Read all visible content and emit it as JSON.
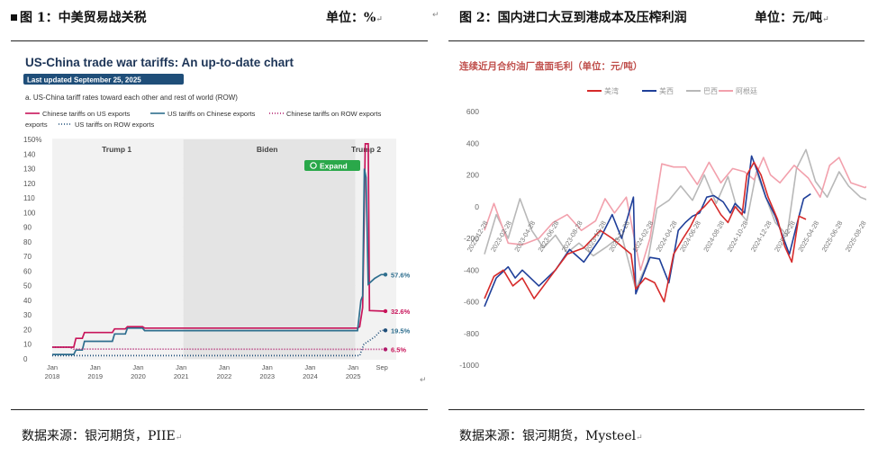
{
  "left": {
    "header_title": "图 1：中美贸易战关税",
    "header_unit": "单位：%",
    "source": "数据来源：银河期货，PIIE",
    "chart_data": {
      "type": "line",
      "title": "US-China trade war tariffs: An up-to-date chart",
      "badge": "Last updated September 25, 2025",
      "subtitle": "a. US-China tariff rates toward each other and rest of world (ROW)",
      "legend": [
        {
          "name": "Chinese tariffs on US exports",
          "color": "#c8145a",
          "style": "solid"
        },
        {
          "name": "US tariffs on Chinese exports",
          "color": "#2e6e8e",
          "style": "solid"
        },
        {
          "name": "Chinese tariffs on ROW exports",
          "color": "#b0186a",
          "style": "dotted"
        },
        {
          "name": "US tariffs on ROW exports",
          "color": "#1f4e79",
          "style": "dotted"
        }
      ],
      "y_ticks": [
        "150%",
        "140",
        "130",
        "120",
        "110",
        "100",
        "90",
        "80",
        "70",
        "60",
        "50",
        "40",
        "30",
        "20",
        "10",
        "0"
      ],
      "x_ticks": [
        {
          "m": "Jan",
          "y": "2018"
        },
        {
          "m": "Jan",
          "y": "2019"
        },
        {
          "m": "Jan",
          "y": "2020"
        },
        {
          "m": "Jan",
          "y": "2021"
        },
        {
          "m": "Jan",
          "y": "2022"
        },
        {
          "m": "Jan",
          "y": "2023"
        },
        {
          "m": "Jan",
          "y": "2024"
        },
        {
          "m": "Jan",
          "y": "2025"
        },
        {
          "m": "Sep",
          "y": ""
        }
      ],
      "eras": [
        "Trump 1",
        "Biden",
        "Trump 2"
      ],
      "expand_label": "Expand",
      "end_labels": [
        {
          "text": "57.6%",
          "value": 57.6,
          "color": "#2e6e8e"
        },
        {
          "text": "32.6%",
          "value": 32.6,
          "color": "#c8145a"
        },
        {
          "text": "19.5%",
          "value": 19.5,
          "color": "#2e6e8e"
        },
        {
          "text": "6.5%",
          "value": 6.5,
          "color": "#c8145a"
        }
      ],
      "ylim": [
        0,
        150
      ],
      "series": [
        {
          "name": "Chinese tariffs on US exports",
          "color": "#c8145a",
          "dash": "",
          "points": [
            [
              2018.0,
              8
            ],
            [
              2018.5,
              8
            ],
            [
              2018.55,
              14
            ],
            [
              2018.7,
              14
            ],
            [
              2018.75,
              18
            ],
            [
              2019.0,
              18
            ],
            [
              2019.4,
              18
            ],
            [
              2019.45,
              20.5
            ],
            [
              2019.7,
              20.5
            ],
            [
              2019.75,
              22
            ],
            [
              2020.1,
              22
            ],
            [
              2020.15,
              21
            ],
            [
              2025.1,
              21
            ],
            [
              2025.15,
              22
            ],
            [
              2025.22,
              35
            ],
            [
              2025.25,
              84
            ],
            [
              2025.28,
              147
            ],
            [
              2025.35,
              147
            ],
            [
              2025.38,
              33
            ],
            [
              2025.75,
              32.6
            ]
          ]
        },
        {
          "name": "US tariffs on Chinese exports",
          "color": "#2e6e8e",
          "dash": "",
          "points": [
            [
              2018.0,
              3
            ],
            [
              2018.5,
              3
            ],
            [
              2018.55,
              6
            ],
            [
              2018.7,
              6
            ],
            [
              2018.75,
              12
            ],
            [
              2019.4,
              12
            ],
            [
              2019.45,
              17
            ],
            [
              2019.7,
              17
            ],
            [
              2019.75,
              21
            ],
            [
              2020.1,
              21
            ],
            [
              2020.15,
              19.3
            ],
            [
              2025.1,
              19.3
            ],
            [
              2025.12,
              24
            ],
            [
              2025.18,
              40
            ],
            [
              2025.22,
              43
            ],
            [
              2025.26,
              130
            ],
            [
              2025.3,
              124
            ],
            [
              2025.35,
              51
            ],
            [
              2025.5,
              55
            ],
            [
              2025.65,
              57.6
            ],
            [
              2025.75,
              57.6
            ]
          ]
        },
        {
          "name": "Chinese tariffs on ROW exports",
          "color": "#b0186a",
          "dash": "1,2",
          "points": [
            [
              2018.0,
              8
            ],
            [
              2018.4,
              8
            ],
            [
              2018.5,
              6.7
            ],
            [
              2025.75,
              6.5
            ]
          ]
        },
        {
          "name": "US tariffs on ROW exports",
          "color": "#1f4e79",
          "dash": "1,2",
          "points": [
            [
              2018.0,
              2.2
            ],
            [
              2025.15,
              2.2
            ],
            [
              2025.25,
              10
            ],
            [
              2025.35,
              12
            ],
            [
              2025.5,
              15
            ],
            [
              2025.65,
              19.5
            ],
            [
              2025.75,
              19.5
            ]
          ]
        }
      ]
    }
  },
  "right": {
    "header_title": "图 2：国内进口大豆到港成本及压榨利润",
    "header_unit": "单位：元/吨",
    "source": "数据来源：银河期货，Mysteel",
    "chart_data": {
      "type": "line",
      "title": "连续近月合约油厂盘面毛利（单位：元/吨）",
      "legend": [
        {
          "name": "美湾",
          "color": "#d62a2a"
        },
        {
          "name": "美西",
          "color": "#1f3f99"
        },
        {
          "name": "巴西",
          "color": "#b8b8b8"
        },
        {
          "name": "阿根廷",
          "color": "#f2a0ac"
        }
      ],
      "y_ticks": [
        "600",
        "400",
        "200",
        "0",
        "-200",
        "-400",
        "-600",
        "-800",
        "-1000"
      ],
      "ylim": [
        -1000,
        600
      ],
      "x_ticks": [
        "2022-12-28",
        "2023-02-28",
        "2023-04-28",
        "2023-06-28",
        "2023-08-28",
        "2023-10-28",
        "2023-12-28",
        "2024-02-28",
        "2024-04-28",
        "2024-06-28",
        "2024-08-28",
        "2024-10-28",
        "2024-12-28",
        "2025-02-28",
        "2025-04-28",
        "2025-06-28",
        "2025-08-28"
      ],
      "series": [
        {
          "name": "巴西",
          "color": "#b8b8b8",
          "values": [
            [
              0,
              -300
            ],
            [
              0.5,
              -50
            ],
            [
              1,
              -200
            ],
            [
              1.5,
              50
            ],
            [
              2,
              -150
            ],
            [
              2.5,
              -260
            ],
            [
              3,
              -180
            ],
            [
              3.5,
              -290
            ],
            [
              4,
              -230
            ],
            [
              4.6,
              -310
            ],
            [
              5.2,
              -250
            ],
            [
              5.8,
              -180
            ],
            [
              6.4,
              -520
            ],
            [
              6.9,
              -350
            ],
            [
              7.3,
              -10
            ],
            [
              7.8,
              40
            ],
            [
              8.3,
              130
            ],
            [
              8.8,
              40
            ],
            [
              9.3,
              200
            ],
            [
              9.8,
              20
            ],
            [
              10.3,
              190
            ],
            [
              10.7,
              -20
            ],
            [
              11.1,
              -90
            ],
            [
              11.5,
              220
            ],
            [
              11.9,
              60
            ],
            [
              12.3,
              -100
            ],
            [
              12.8,
              -180
            ],
            [
              13.2,
              240
            ],
            [
              13.6,
              360
            ],
            [
              14.0,
              160
            ],
            [
              14.5,
              60
            ],
            [
              15.0,
              220
            ],
            [
              15.4,
              130
            ],
            [
              15.9,
              60
            ],
            [
              16.4,
              30
            ],
            [
              16.8,
              -160
            ]
          ]
        },
        {
          "name": "阿根廷",
          "color": "#f2a0ac",
          "values": [
            [
              0,
              -150
            ],
            [
              0.4,
              20
            ],
            [
              1,
              -230
            ],
            [
              1.6,
              -240
            ],
            [
              2.3,
              -200
            ],
            [
              2.9,
              -100
            ],
            [
              3.5,
              -50
            ],
            [
              4.1,
              -150
            ],
            [
              4.7,
              -90
            ],
            [
              5.1,
              50
            ],
            [
              5.5,
              -40
            ],
            [
              6.0,
              60
            ],
            [
              6.6,
              -400
            ],
            [
              7.0,
              -200
            ],
            [
              7.5,
              270
            ],
            [
              8.0,
              250
            ],
            [
              8.5,
              250
            ],
            [
              9.0,
              140
            ],
            [
              9.5,
              280
            ],
            [
              10.0,
              150
            ],
            [
              10.5,
              240
            ],
            [
              11.0,
              220
            ],
            [
              11.4,
              170
            ],
            [
              11.8,
              310
            ],
            [
              12.1,
              200
            ],
            [
              12.5,
              150
            ],
            [
              13.1,
              260
            ],
            [
              13.7,
              180
            ],
            [
              14.2,
              60
            ],
            [
              14.6,
              260
            ],
            [
              15.0,
              310
            ],
            [
              15.5,
              150
            ],
            [
              16.1,
              120
            ],
            [
              16.8,
              200
            ]
          ]
        },
        {
          "name": "美西",
          "color": "#1f3f99",
          "values": [
            [
              0,
              -630
            ],
            [
              0.5,
              -450
            ],
            [
              1,
              -380
            ],
            [
              1.3,
              -450
            ],
            [
              1.6,
              -400
            ],
            [
              2.3,
              -500
            ],
            [
              3.0,
              -400
            ],
            [
              3.6,
              -270
            ],
            [
              4.2,
              -350
            ],
            [
              4.9,
              -200
            ],
            [
              5.4,
              -50
            ],
            [
              5.8,
              -200
            ],
            [
              6.3,
              60
            ],
            [
              6.4,
              -550
            ],
            [
              7.0,
              -320
            ],
            [
              7.4,
              -330
            ],
            [
              7.8,
              -480
            ],
            [
              8.2,
              -150
            ],
            [
              8.5,
              -100
            ],
            [
              8.8,
              -60
            ],
            [
              9.1,
              -40
            ],
            [
              9.4,
              60
            ],
            [
              9.7,
              70
            ],
            [
              10.1,
              30
            ],
            [
              10.4,
              -40
            ],
            [
              10.6,
              20
            ],
            [
              11.0,
              -40
            ],
            [
              11.3,
              320
            ],
            [
              11.6,
              200
            ],
            [
              11.9,
              60
            ],
            [
              12.3,
              -60
            ],
            [
              12.6,
              -180
            ],
            [
              12.9,
              -300
            ],
            [
              13.2,
              -120
            ],
            [
              13.5,
              50
            ],
            [
              13.8,
              80
            ]
          ]
        },
        {
          "name": "美湾",
          "color": "#d62a2a",
          "values": [
            [
              0,
              -580
            ],
            [
              0.4,
              -440
            ],
            [
              0.8,
              -400
            ],
            [
              1.2,
              -500
            ],
            [
              1.6,
              -450
            ],
            [
              2.1,
              -580
            ],
            [
              2.8,
              -440
            ],
            [
              3.5,
              -300
            ],
            [
              4.2,
              -260
            ],
            [
              4.9,
              -150
            ],
            [
              5.4,
              -200
            ],
            [
              6.2,
              -300
            ],
            [
              6.4,
              -520
            ],
            [
              6.8,
              -450
            ],
            [
              7.2,
              -480
            ],
            [
              7.6,
              -600
            ],
            [
              8.0,
              -300
            ],
            [
              8.4,
              -200
            ],
            [
              8.7,
              -130
            ],
            [
              9.0,
              -40
            ],
            [
              9.3,
              0
            ],
            [
              9.6,
              50
            ],
            [
              10.0,
              -50
            ],
            [
              10.3,
              -100
            ],
            [
              10.6,
              0
            ],
            [
              10.9,
              -50
            ],
            [
              11.1,
              200
            ],
            [
              11.4,
              280
            ],
            [
              11.7,
              200
            ],
            [
              12.0,
              60
            ],
            [
              12.4,
              -80
            ],
            [
              12.7,
              -250
            ],
            [
              13.0,
              -350
            ],
            [
              13.3,
              -60
            ],
            [
              13.6,
              -80
            ]
          ]
        }
      ]
    }
  }
}
